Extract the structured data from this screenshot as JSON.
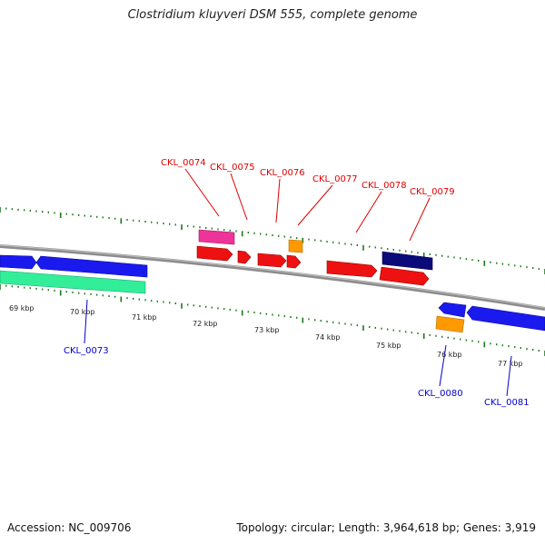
{
  "title": "Clostridium kluyveri DSM 555, complete genome",
  "accession_text": "Accession: NC_009706",
  "topology_text": "Topology: circular; Length: 3,964,618 bp; Genes: 3,919",
  "colors": {
    "backbone": "#8c8c8c",
    "tick": "#1a7a1a",
    "label_upper": "#e00000",
    "label_lower": "#0000cc",
    "red": "#ee1111",
    "blue": "#1a1aee",
    "navy": "#0a0a7a",
    "pink": "#ee3399",
    "orange": "#ff9900",
    "teal": "#33ee99"
  },
  "scale_labels": [
    "69 kbp",
    "70 kbp",
    "71 kbp",
    "72 kbp",
    "73 kbp",
    "74 kbp",
    "75 kbp",
    "76 kbp",
    "77 kbp"
  ],
  "gene_labels_upper": [
    "CKL_0074",
    "CKL_0075",
    "CKL_0076",
    "CKL_0077",
    "CKL_0078",
    "CKL_0079"
  ],
  "gene_labels_lower": [
    "CKL_0073",
    "CKL_0080",
    "CKL_0081"
  ]
}
